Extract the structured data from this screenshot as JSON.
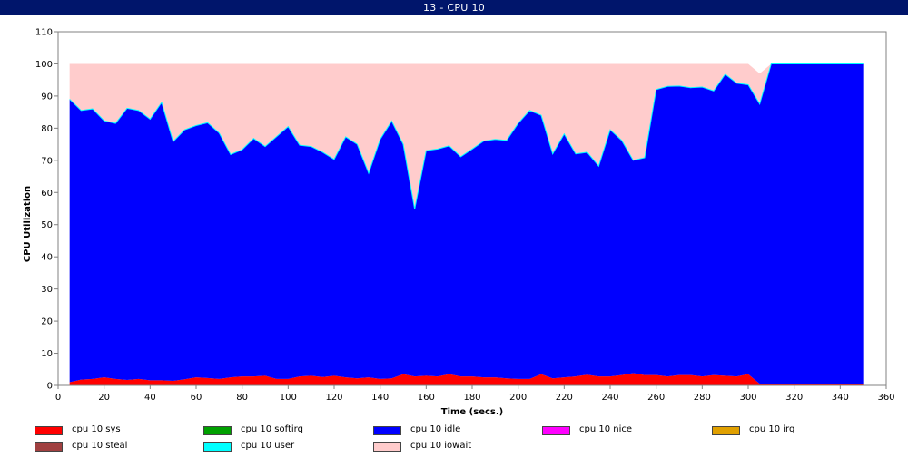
{
  "window": {
    "title": "13 - CPU 10"
  },
  "chart_data": {
    "type": "area",
    "stacked": true,
    "title": "",
    "xlabel": "Time (secs.)",
    "ylabel": "CPU Utilization",
    "xlim": [
      0,
      360
    ],
    "ylim": [
      0,
      110
    ],
    "xticks": [
      0,
      20,
      40,
      60,
      80,
      100,
      120,
      140,
      160,
      180,
      200,
      220,
      240,
      260,
      280,
      300,
      320,
      340,
      360
    ],
    "yticks": [
      0,
      10,
      20,
      30,
      40,
      50,
      60,
      70,
      80,
      90,
      100,
      110
    ],
    "grid": false,
    "legend_position": "bottom",
    "x": [
      5,
      10,
      15,
      20,
      25,
      30,
      35,
      40,
      45,
      50,
      55,
      60,
      65,
      70,
      75,
      80,
      85,
      90,
      95,
      100,
      105,
      110,
      115,
      120,
      125,
      130,
      135,
      140,
      145,
      150,
      155,
      160,
      165,
      170,
      175,
      180,
      185,
      190,
      195,
      200,
      205,
      210,
      215,
      220,
      225,
      230,
      235,
      240,
      245,
      250,
      255,
      260,
      265,
      270,
      275,
      280,
      285,
      290,
      295,
      300,
      305,
      310,
      315,
      320,
      325,
      330,
      335,
      340,
      345,
      350
    ],
    "series": [
      {
        "name": "cpu 10 sys",
        "color": "#ff0000",
        "values": [
          1.0,
          1.8,
          2.0,
          2.5,
          2.0,
          1.7,
          2.0,
          1.6,
          1.6,
          1.4,
          1.9,
          2.5,
          2.3,
          2.0,
          2.5,
          2.8,
          2.8,
          3.0,
          2.0,
          2.0,
          2.8,
          3.0,
          2.6,
          3.0,
          2.5,
          2.2,
          2.5,
          2.0,
          2.2,
          3.5,
          2.8,
          3.0,
          2.8,
          3.5,
          2.8,
          2.8,
          2.5,
          2.5,
          2.2,
          2.0,
          2.0,
          3.5,
          2.2,
          2.5,
          2.8,
          3.3,
          2.8,
          2.8,
          3.2,
          3.8,
          3.2,
          3.2,
          2.8,
          3.2,
          3.2,
          2.8,
          3.2,
          3.0,
          2.8,
          3.5,
          0.5,
          0.5,
          0.5,
          0.5,
          0.5,
          0.5,
          0.5,
          0.5,
          0.5,
          0.5
        ]
      },
      {
        "name": "cpu 10 softirq",
        "color": "#00a000",
        "values": [
          0,
          0,
          0,
          0,
          0,
          0,
          0,
          0,
          0,
          0,
          0,
          0,
          0,
          0,
          0,
          0,
          0,
          0,
          0,
          0,
          0,
          0,
          0,
          0,
          0,
          0,
          0,
          0,
          0,
          0,
          0,
          0,
          0,
          0,
          0,
          0,
          0,
          0,
          0,
          0,
          0,
          0,
          0,
          0,
          0,
          0,
          0,
          0,
          0,
          0,
          0,
          0,
          0,
          0,
          0,
          0,
          0,
          0,
          0,
          0,
          0,
          0,
          0,
          0,
          0,
          0,
          0,
          0,
          0,
          0
        ]
      },
      {
        "name": "cpu 10 idle",
        "color": "#0000ff",
        "values": [
          88.0,
          83.7,
          84.0,
          79.8,
          79.5,
          84.5,
          83.5,
          81.2,
          86.4,
          74.4,
          77.6,
          78.3,
          79.4,
          76.5,
          69.3,
          70.5,
          74.0,
          71.3,
          75.4,
          78.5,
          71.9,
          71.3,
          69.9,
          67.3,
          74.8,
          72.8,
          63.5,
          74.5,
          80.0,
          71.5,
          52.0,
          70.0,
          70.7,
          71.0,
          68.3,
          70.7,
          73.5,
          74.0,
          74.0,
          79.5,
          83.5,
          80.5,
          69.8,
          75.7,
          69.2,
          69.2,
          65.4,
          76.7,
          73.0,
          66.2,
          67.6,
          88.8,
          90.2,
          89.9,
          89.4,
          90.0,
          88.4,
          93.8,
          91.2,
          90.0,
          87.0,
          99.5,
          99.5,
          99.5,
          99.5,
          99.5,
          99.5,
          99.5,
          99.5,
          99.5
        ]
      },
      {
        "name": "cpu 10 nice",
        "color": "#ff00ff",
        "values": [
          0,
          0,
          0,
          0,
          0,
          0,
          0,
          0,
          0,
          0,
          0,
          0,
          0,
          0,
          0,
          0,
          0,
          0,
          0,
          0,
          0,
          0,
          0,
          0,
          0,
          0,
          0,
          0,
          0,
          0,
          0,
          0,
          0,
          0,
          0,
          0,
          0,
          0,
          0,
          0,
          0,
          0,
          0,
          0,
          0,
          0,
          0,
          0,
          0,
          0,
          0,
          0,
          0,
          0,
          0,
          0,
          0,
          0,
          0,
          0,
          0,
          0,
          0,
          0,
          0,
          0,
          0,
          0,
          0,
          0
        ]
      },
      {
        "name": "cpu 10 irq",
        "color": "#e0a000",
        "values": [
          0,
          0,
          0,
          0,
          0,
          0,
          0,
          0,
          0,
          0,
          0,
          0,
          0,
          0,
          0,
          0,
          0,
          0,
          0,
          0,
          0,
          0,
          0,
          0,
          0,
          0,
          0,
          0,
          0,
          0,
          0,
          0,
          0,
          0,
          0,
          0,
          0,
          0,
          0,
          0,
          0,
          0,
          0,
          0,
          0,
          0,
          0,
          0,
          0,
          0,
          0,
          0,
          0,
          0,
          0,
          0,
          0,
          0,
          0,
          0,
          0,
          0,
          0,
          0,
          0,
          0,
          0,
          0,
          0,
          0
        ]
      },
      {
        "name": "cpu 10 steal",
        "color": "#a04040",
        "values": [
          0,
          0,
          0,
          0,
          0,
          0,
          0,
          0,
          0,
          0,
          0,
          0,
          0,
          0,
          0,
          0,
          0,
          0,
          0,
          0,
          0,
          0,
          0,
          0,
          0,
          0,
          0,
          0,
          0,
          0,
          0,
          0,
          0,
          0,
          0,
          0,
          0,
          0,
          0,
          0,
          0,
          0,
          0,
          0,
          0,
          0,
          0,
          0,
          0,
          0,
          0,
          0,
          0,
          0,
          0,
          0,
          0,
          0,
          0,
          0,
          0,
          0,
          0,
          0,
          0,
          0,
          0,
          0,
          0,
          0
        ]
      },
      {
        "name": "cpu 10 user",
        "color": "#00ffff",
        "values": [
          0,
          0,
          0,
          0,
          0,
          0,
          0,
          0,
          0,
          0,
          0,
          0,
          0,
          0,
          0,
          0,
          0,
          0,
          0,
          0,
          0,
          0,
          0,
          0,
          0,
          0,
          0,
          0,
          0,
          0,
          0,
          0,
          0,
          0,
          0,
          0,
          0,
          0,
          0,
          0,
          0,
          0,
          0,
          0,
          0,
          0,
          0,
          0,
          0,
          0,
          0,
          0,
          0,
          0,
          0,
          0,
          0,
          0,
          0,
          0,
          0,
          0,
          0,
          0,
          0,
          0,
          0,
          0,
          0,
          0
        ]
      },
      {
        "name": "cpu 10 iowait",
        "color": "#ffcccc",
        "values": [
          11.0,
          14.5,
          14.0,
          17.7,
          18.5,
          13.8,
          14.5,
          17.2,
          12.0,
          24.2,
          20.5,
          19.2,
          18.3,
          21.5,
          28.2,
          26.7,
          23.2,
          25.7,
          22.6,
          19.5,
          25.3,
          25.7,
          27.5,
          29.7,
          22.7,
          25.0,
          34.0,
          23.5,
          17.8,
          25.0,
          45.2,
          27.0,
          26.5,
          25.5,
          28.9,
          26.5,
          24.0,
          23.5,
          23.8,
          18.5,
          14.5,
          16.0,
          28.0,
          21.8,
          28.0,
          27.5,
          31.8,
          20.5,
          23.8,
          30.0,
          29.2,
          8.0,
          7.0,
          6.9,
          7.4,
          7.2,
          8.4,
          3.2,
          6.0,
          6.5,
          9.5,
          0,
          0,
          0,
          0,
          0,
          0,
          0,
          0,
          0
        ]
      }
    ]
  },
  "legend": {
    "items": [
      {
        "label": "cpu 10 sys",
        "color": "#ff0000"
      },
      {
        "label": "cpu 10 softirq",
        "color": "#00a000"
      },
      {
        "label": "cpu 10 idle",
        "color": "#0000ff"
      },
      {
        "label": "cpu 10 nice",
        "color": "#ff00ff"
      },
      {
        "label": "cpu 10 irq",
        "color": "#e0a000"
      },
      {
        "label": "cpu 10 steal",
        "color": "#a04040"
      },
      {
        "label": "cpu 10 user",
        "color": "#00ffff"
      },
      {
        "label": "cpu 10 iowait",
        "color": "#ffcccc"
      }
    ]
  }
}
